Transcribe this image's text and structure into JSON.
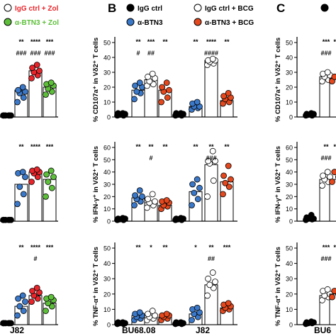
{
  "panel_letters": {
    "B": "B",
    "C": "C"
  },
  "legend_A": [
    {
      "label": "IgG ctrl + Zol",
      "color": "#e8252b",
      "fill": "#ffffff",
      "hollow": true
    },
    {
      "label": "α-BTN3 + Zol",
      "color": "#5dbf3a",
      "fill": "#5dbf3a",
      "hollow": false
    }
  ],
  "legend_B": [
    {
      "label": "IgG ctrl",
      "fill": "#000000",
      "hollow": false
    },
    {
      "label": "IgG ctrl + BCG",
      "fill": "#ffffff",
      "hollow": true
    },
    {
      "label": "α-BTN3",
      "fill": "#3a78c9",
      "hollow": false
    },
    {
      "label": "α-BTN3 + BCG",
      "fill": "#e5481d",
      "hollow": false
    }
  ],
  "colors": {
    "black": "#000000",
    "blue": "#3a78c9",
    "red": "#e8252b",
    "green": "#5dbf3a",
    "orange_red": "#e5481d",
    "white": "#ffffff"
  },
  "chart_data": [
    {
      "type": "scatter",
      "panel": "A-top",
      "categories": [
        "IgG ctrl",
        "α-BTN3",
        "IgG ctrl + Zol",
        "α-BTN3 + Zol"
      ],
      "bars": [
        1,
        18,
        31,
        20
      ],
      "points": [
        [
          1,
          1,
          1,
          1,
          1,
          1
        ],
        [
          10,
          13,
          16,
          17,
          18,
          20
        ],
        [
          26,
          28,
          30,
          31,
          33,
          35
        ],
        [
          15,
          17,
          19,
          21,
          22,
          23
        ]
      ],
      "colors": [
        "#000000",
        "#3a78c9",
        "#e8252b",
        "#5dbf3a"
      ],
      "sig_star": [
        "",
        "**",
        "****",
        "***"
      ],
      "sig_hash": [
        "",
        "###",
        "###",
        "###"
      ],
      "ylim": [
        0,
        50
      ]
    },
    {
      "type": "scatter",
      "panel": "A-mid",
      "categories": [
        "IgG ctrl",
        "α-BTN3",
        "IgG ctrl + Zol",
        "α-BTN3 + Zol"
      ],
      "bars": [
        1,
        30,
        40,
        34
      ],
      "points": [
        [
          1,
          1,
          1,
          1,
          1,
          1
        ],
        [
          14,
          22,
          28,
          36,
          39,
          40
        ],
        [
          32,
          36,
          39,
          40,
          41,
          42
        ],
        [
          20,
          27,
          32,
          36,
          38,
          41
        ]
      ],
      "colors": [
        "#000000",
        "#3a78c9",
        "#e8252b",
        "#5dbf3a"
      ],
      "sig_star": [
        "",
        "**",
        "****",
        "***"
      ],
      "sig_hash": [
        "",
        "",
        "",
        ""
      ],
      "ylim": [
        0,
        60
      ]
    },
    {
      "type": "scatter",
      "panel": "A-bot",
      "categories": [
        "IgG ctrl",
        "α-BTN3",
        "IgG ctrl + Zol",
        "α-BTN3 + Zol"
      ],
      "bars": [
        1,
        12,
        19,
        14
      ],
      "points": [
        [
          1,
          1,
          1,
          1,
          1,
          1
        ],
        [
          6,
          9,
          12,
          15,
          17,
          19
        ],
        [
          15,
          17,
          19,
          21,
          22,
          24
        ],
        [
          9,
          12,
          14,
          16,
          17,
          18
        ]
      ],
      "colors": [
        "#000000",
        "#3a78c9",
        "#e8252b",
        "#5dbf3a"
      ],
      "sig_star": [
        "",
        "**",
        "****",
        "***"
      ],
      "sig_hash": [
        "",
        "",
        "#",
        ""
      ],
      "ylim": [
        0,
        50
      ]
    },
    {
      "type": "scatter",
      "panel": "B-top",
      "ylabel": "% CD107a⁺ in Vδ2⁺ T cells",
      "group_labels": [
        "BU68.08",
        "J82"
      ],
      "yticks": [
        0,
        10,
        20,
        30,
        40,
        50
      ],
      "ylim": [
        0,
        50
      ],
      "groups": [
        {
          "bars": [
            1.5,
            18,
            25,
            18
          ],
          "points": [
            [
              1,
              1,
              1.5,
              2,
              2.5,
              2.5
            ],
            [
              12,
              16,
              17,
              20,
              21,
              23
            ],
            [
              21,
              22,
              24,
              26,
              27,
              29
            ],
            [
              10,
              13,
              17,
              18,
              20,
              23
            ]
          ],
          "sig_star": [
            "",
            "**",
            "***",
            "**"
          ],
          "sig_hash": [
            "",
            "#",
            "##",
            ""
          ]
        },
        {
          "bars": [
            1.5,
            7,
            38,
            11
          ],
          "points": [
            [
              1,
              1,
              1.5,
              2,
              2.5,
              2.5
            ],
            [
              5,
              6,
              7,
              7,
              9,
              10
            ],
            [
              35,
              36,
              37,
              38,
              38,
              39
            ],
            [
              9,
              10,
              12,
              13,
              14,
              16
            ]
          ],
          "sig_star": [
            "",
            "**",
            "****",
            "**"
          ],
          "sig_hash": [
            "",
            "",
            "####",
            ""
          ]
        }
      ]
    },
    {
      "type": "scatter",
      "panel": "B-mid",
      "ylabel": "% IFN-γ⁺ in Vδ2⁺ T cells",
      "yticks": [
        0,
        10,
        20,
        30,
        40,
        50,
        60
      ],
      "ylim": [
        0,
        60
      ],
      "groups": [
        {
          "bars": [
            1.5,
            19,
            15,
            13
          ],
          "points": [
            [
              1,
              1,
              1.5,
              2,
              2,
              2.5
            ],
            [
              13,
              16,
              18,
              20,
              21,
              25
            ],
            [
              11,
              13,
              15,
              16,
              18,
              22
            ],
            [
              10,
              12,
              13,
              15,
              16,
              17
            ]
          ],
          "sig_star": [
            "",
            "**",
            "**",
            "**"
          ],
          "sig_hash": [
            "",
            "",
            "#",
            ""
          ]
        },
        {
          "bars": [
            1.5,
            24,
            46,
            32
          ],
          "points": [
            [
              1,
              1,
              1.5,
              2,
              2,
              2.5
            ],
            [
              13,
              18,
              23,
              27,
              30,
              34
            ],
            [
              20,
              33,
              47,
              49,
              49,
              57
            ],
            [
              22,
              28,
              31,
              34,
              37,
              45
            ]
          ],
          "sig_star": [
            "",
            "**",
            "**",
            "**"
          ],
          "sig_hash": [
            "",
            "",
            "###",
            ""
          ]
        }
      ]
    },
    {
      "type": "scatter",
      "panel": "B-bot",
      "ylabel": "% TNF-α⁺ in Vδ2⁺ T cells",
      "yticks": [
        0,
        10,
        20,
        30,
        40,
        50
      ],
      "ylim": [
        0,
        50
      ],
      "groups": [
        {
          "bars": [
            1,
            6,
            6,
            5
          ],
          "points": [
            [
              0.5,
              0.5,
              1,
              1,
              1.5,
              1.5
            ],
            [
              3,
              4,
              5,
              6,
              7,
              8
            ],
            [
              3,
              4,
              5,
              6,
              7,
              9
            ],
            [
              3,
              4,
              5,
              6,
              6,
              7
            ]
          ],
          "sig_star": [
            "",
            "**",
            "*",
            "**"
          ],
          "sig_hash": [
            "",
            "",
            "",
            ""
          ]
        },
        {
          "bars": [
            1,
            7,
            26,
            11
          ],
          "points": [
            [
              0.5,
              0.5,
              1,
              1,
              1.5,
              1.5
            ],
            [
              3,
              5,
              7,
              8,
              10,
              11
            ],
            [
              19,
              24,
              26,
              28,
              30,
              34
            ],
            [
              9,
              10,
              11,
              12,
              13,
              14
            ]
          ],
          "sig_star": [
            "",
            "*",
            "**",
            "***"
          ],
          "sig_hash": [
            "",
            "",
            "##",
            ""
          ]
        }
      ]
    },
    {
      "type": "scatter",
      "panel": "C-top",
      "ylabel": "% CD107a⁺ in Vδ2⁺ T cells",
      "group_labels": [
        "BU6"
      ],
      "yticks": [
        0,
        10,
        20,
        30,
        40,
        50
      ],
      "ylim": [
        0,
        50
      ],
      "bars": [
        1.5,
        27,
        26
      ],
      "points": [
        [
          1,
          1,
          1.5,
          2,
          2,
          2.5
        ],
        [
          24,
          25,
          27,
          28,
          29,
          30
        ],
        [
          24,
          26,
          27
        ]
      ],
      "sig_star": [
        "",
        "***",
        "**"
      ],
      "sig_hash": [
        "",
        "###",
        ""
      ]
    },
    {
      "type": "scatter",
      "panel": "C-mid",
      "ylabel": "% IFN-γ⁺ in Vδ2⁺ T cells",
      "yticks": [
        0,
        10,
        20,
        30,
        40,
        50,
        60
      ],
      "ylim": [
        0,
        60
      ],
      "bars": [
        2,
        34,
        34
      ],
      "points": [
        [
          1,
          1.5,
          2,
          2,
          3,
          5
        ],
        [
          29,
          32,
          34,
          36,
          37,
          40
        ],
        [
          32,
          36,
          40
        ]
      ],
      "sig_star": [
        "",
        "**",
        "**"
      ],
      "sig_hash": [
        "",
        "###",
        ""
      ]
    },
    {
      "type": "scatter",
      "panel": "C-bot",
      "ylabel": "% TNF-α⁺ in Vδ2⁺ T cells",
      "yticks": [
        0,
        10,
        20,
        30,
        40,
        50
      ],
      "ylim": [
        0,
        50
      ],
      "bars": [
        1,
        19,
        20
      ],
      "points": [
        [
          0.5,
          1,
          1,
          1.5,
          1.5,
          2
        ],
        [
          16,
          18,
          19,
          20,
          22,
          23
        ],
        [
          18,
          20,
          22
        ]
      ],
      "sig_star": [
        "",
        "***",
        "**"
      ],
      "sig_hash": [
        "",
        "###",
        ""
      ]
    }
  ]
}
